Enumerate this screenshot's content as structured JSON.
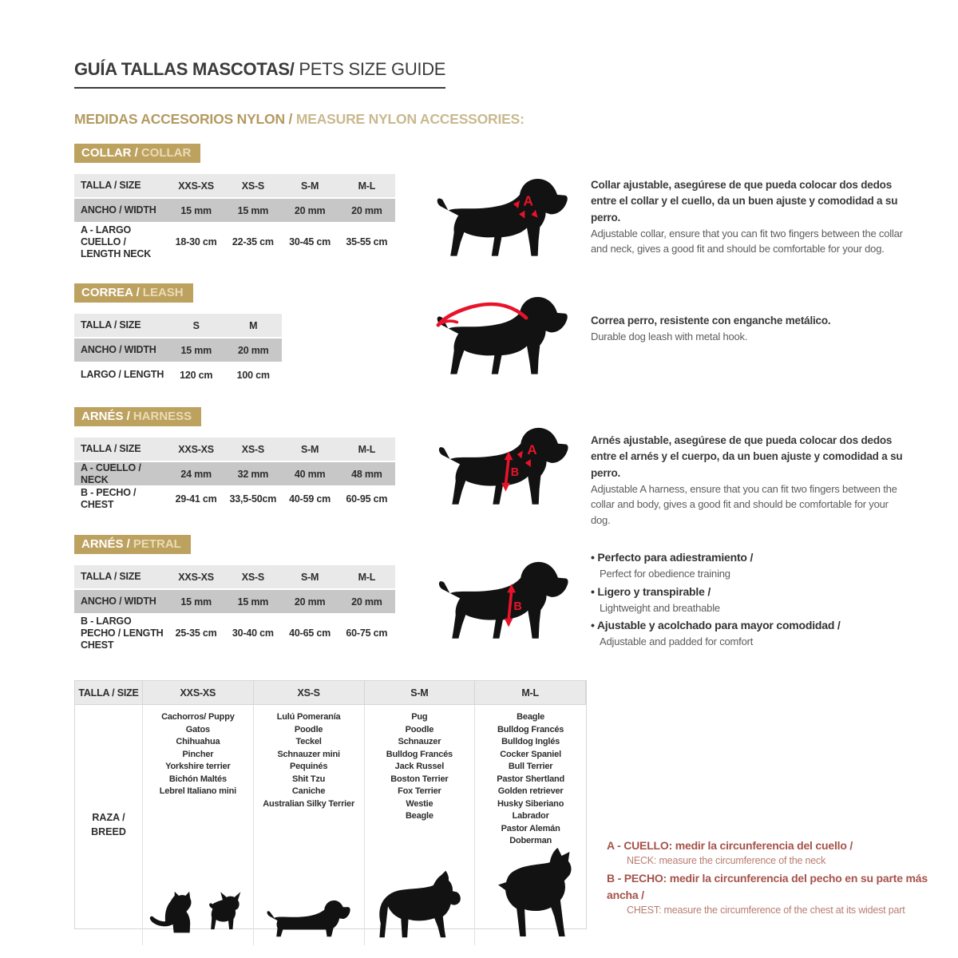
{
  "page": {
    "title_es": "GUÍA TALLAS MASCOTAS/",
    "title_en": "PETS SIZE GUIDE",
    "subtitle_es": "MEDIDAS ACCESORIOS NYLON /",
    "subtitle_en": "MEASURE NYLON ACCESSORIES:"
  },
  "colors": {
    "accent_tan": "#bda15f",
    "marker_red": "#e8132b",
    "note_red": "#a6524b"
  },
  "collar": {
    "badge_es": "COLLAR /",
    "badge_en": "COLLAR",
    "marker_a": "A",
    "table": {
      "size_label": "TALLA / SIZE",
      "columns": [
        "XXS-XS",
        "XS-S",
        "S-M",
        "M-L"
      ],
      "rows": [
        {
          "label": "ANCHO / WIDTH",
          "values": [
            "15 mm",
            "15 mm",
            "20 mm",
            "20 mm"
          ]
        },
        {
          "label": "A - LARGO CUELLO / LENGTH NECK",
          "values": [
            "18-30 cm",
            "22-35 cm",
            "30-45 cm",
            "35-55 cm"
          ]
        }
      ]
    },
    "desc_es": "Collar ajustable, asegúrese de que pueda colocar dos dedos entre el collar y el cuello, da un buen ajuste y comodidad a su perro.",
    "desc_en": "Adjustable collar, ensure that you can fit two fingers between the collar and neck, gives a good fit and should be comfortable for your dog."
  },
  "leash": {
    "badge_es": "CORREA /",
    "badge_en": "LEASH",
    "table": {
      "size_label": "TALLA / SIZE",
      "columns": [
        "S",
        "M"
      ],
      "rows": [
        {
          "label": "ANCHO / WIDTH",
          "values": [
            "15 mm",
            "20 mm"
          ]
        },
        {
          "label": "LARGO / LENGTH",
          "values": [
            "120 cm",
            "100 cm"
          ]
        }
      ]
    },
    "desc_es": "Correa perro, resistente con enganche metálico.",
    "desc_en": "Durable dog leash with metal hook."
  },
  "harness": {
    "badge_es": "ARNÉS /",
    "badge_en": "HARNESS",
    "marker_a": "A",
    "marker_b": "B",
    "table": {
      "size_label": "TALLA / SIZE",
      "columns": [
        "XXS-XS",
        "XS-S",
        "S-M",
        "M-L"
      ],
      "rows": [
        {
          "label": "A - CUELLO / NECK",
          "values": [
            "24 mm",
            "32 mm",
            "40 mm",
            "48 mm"
          ]
        },
        {
          "label": "B - PECHO / CHEST",
          "values": [
            "29-41 cm",
            "33,5-50cm",
            "40-59 cm",
            "60-95 cm"
          ]
        }
      ]
    },
    "desc_es": "Arnés ajustable, asegúrese de que pueda colocar dos dedos entre el arnés y el cuerpo, da un buen ajuste y comodidad a su perro.",
    "desc_en": "Adjustable A harness, ensure that you can fit two fingers between the collar and body, gives a good fit and should be comfortable for your dog."
  },
  "petral": {
    "badge_es": "ARNÉS /",
    "badge_en": "PETRAL",
    "marker_b": "B",
    "table": {
      "size_label": "TALLA / SIZE",
      "columns": [
        "XXS-XS",
        "XS-S",
        "S-M",
        "M-L"
      ],
      "rows": [
        {
          "label": "ANCHO / WIDTH",
          "values": [
            "15 mm",
            "15 mm",
            "20 mm",
            "20 mm"
          ]
        },
        {
          "label": "B - LARGO PECHO / LENGTH CHEST",
          "values": [
            "25-35 cm",
            "30-40 cm",
            "40-65 cm",
            "60-75 cm"
          ]
        }
      ]
    },
    "bullets": [
      {
        "es": "Perfecto para adiestramiento /",
        "en": "Perfect for obedience training"
      },
      {
        "es": "Ligero y transpirable /",
        "en": "Lightweight and breathable"
      },
      {
        "es": "Ajustable y acolchado para mayor comodidad /",
        "en": "Adjustable and padded for comfort"
      }
    ]
  },
  "breeds": {
    "size_label": "TALLA /  SIZE",
    "row_label_1": "RAZA /",
    "row_label_2": "BREED",
    "columns": [
      "XXS-XS",
      "XS-S",
      "S-M",
      "M-L"
    ],
    "lists": [
      [
        "Cachorros/ Puppy",
        "Gatos",
        "Chihuahua",
        "Pincher",
        "Yorkshire terrier",
        "Bichón Maltés",
        "Lebrel Italiano mini"
      ],
      [
        "Lulú Pomeranía",
        "Poodle",
        "Teckel",
        "Schnauzer mini",
        "Pequinés",
        "Shit Tzu",
        "Caniche",
        "Australian Silky Terrier"
      ],
      [
        "Pug",
        "Poodle",
        "Schnauzer",
        "Bulldog Francés",
        "Jack Russel",
        "Boston Terrier",
        "Fox Terrier",
        "Westie",
        "Beagle"
      ],
      [
        "Beagle",
        "Bulldog Francés",
        "Bulldog Inglés",
        "Cocker Spaniel",
        "Bull Terrier",
        "Pastor Shertland",
        "Golden retriever",
        "Husky Siberiano",
        "Labrador",
        "Pastor Alemán",
        "Doberman"
      ]
    ]
  },
  "measure_notes": {
    "a_es": "A - CUELLO: medir la circunferencia del cuello /",
    "a_en": "NECK: measure the circumference of the neck",
    "b_es": "B - PECHO: medir la circunferencia del pecho en su parte más ancha /",
    "b_en": "CHEST: measure the circumference of the chest at its widest part"
  }
}
